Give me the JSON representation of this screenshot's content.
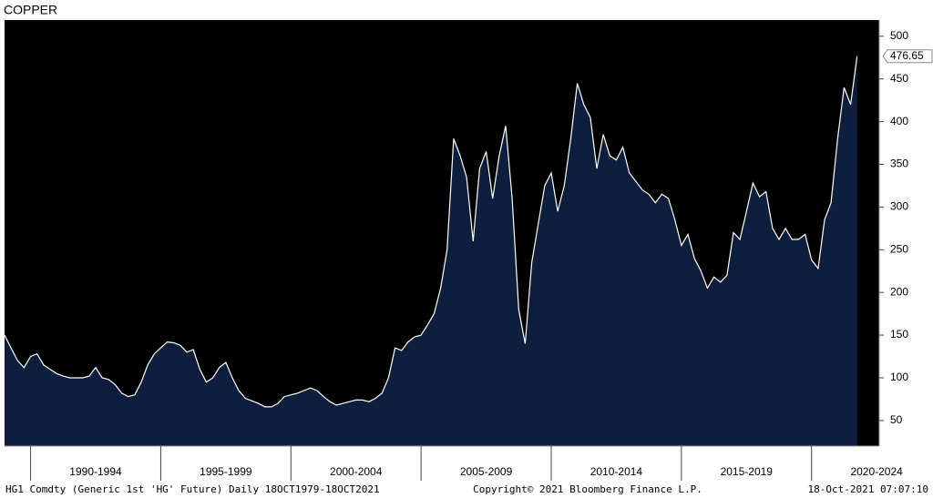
{
  "chart_data": {
    "type": "area",
    "title": "COPPER",
    "x": [
      1989,
      1989.25,
      1989.5,
      1989.75,
      1990,
      1990.25,
      1990.5,
      1990.75,
      1991,
      1991.25,
      1991.5,
      1991.75,
      1992,
      1992.25,
      1992.5,
      1992.75,
      1993,
      1993.25,
      1993.5,
      1993.75,
      1994,
      1994.25,
      1994.5,
      1994.75,
      1995,
      1995.25,
      1995.5,
      1995.75,
      1996,
      1996.25,
      1996.5,
      1996.75,
      1997,
      1997.25,
      1997.5,
      1997.75,
      1998,
      1998.25,
      1998.5,
      1998.75,
      1999,
      1999.25,
      1999.5,
      1999.75,
      2000,
      2000.25,
      2000.5,
      2000.75,
      2001,
      2001.25,
      2001.5,
      2001.75,
      2002,
      2002.25,
      2002.5,
      2002.75,
      2003,
      2003.25,
      2003.5,
      2003.75,
      2004,
      2004.25,
      2004.5,
      2004.75,
      2005,
      2005.25,
      2005.5,
      2005.75,
      2006,
      2006.25,
      2006.5,
      2006.75,
      2007,
      2007.25,
      2007.5,
      2007.75,
      2008,
      2008.25,
      2008.5,
      2008.75,
      2009,
      2009.25,
      2009.5,
      2009.75,
      2010,
      2010.25,
      2010.5,
      2010.75,
      2011,
      2011.25,
      2011.5,
      2011.75,
      2012,
      2012.25,
      2012.5,
      2012.75,
      2013,
      2013.25,
      2013.5,
      2013.75,
      2014,
      2014.25,
      2014.5,
      2014.75,
      2015,
      2015.25,
      2015.5,
      2015.75,
      2016,
      2016.25,
      2016.5,
      2016.75,
      2017,
      2017.25,
      2017.5,
      2017.75,
      2018,
      2018.25,
      2018.5,
      2018.75,
      2019,
      2019.25,
      2019.5,
      2019.75,
      2020,
      2020.25,
      2020.5,
      2020.75,
      2021,
      2021.25,
      2021.5,
      2021.75
    ],
    "series": [
      {
        "name": "HG1 Comdty",
        "color": "#0e1f3d",
        "line_color": "#ffffff",
        "values": [
          150,
          135,
          120,
          112,
          125,
          128,
          115,
          110,
          105,
          102,
          100,
          100,
          100,
          102,
          112,
          100,
          98,
          92,
          82,
          78,
          80,
          95,
          115,
          128,
          135,
          142,
          141,
          138,
          130,
          133,
          110,
          95,
          100,
          112,
          118,
          100,
          85,
          76,
          73,
          70,
          66,
          66,
          70,
          78,
          80,
          82,
          85,
          88,
          85,
          78,
          72,
          68,
          70,
          72,
          74,
          74,
          72,
          76,
          82,
          100,
          135,
          132,
          142,
          148,
          150,
          162,
          175,
          205,
          250,
          380,
          360,
          335,
          260,
          345,
          365,
          310,
          360,
          395,
          310,
          180,
          140,
          235,
          280,
          325,
          340,
          295,
          325,
          380,
          445,
          420,
          405,
          345,
          385,
          360,
          355,
          370,
          340,
          330,
          320,
          315,
          305,
          315,
          310,
          285,
          255,
          268,
          240,
          225,
          205,
          218,
          212,
          220,
          270,
          262,
          295,
          328,
          312,
          318,
          275,
          262,
          275,
          262,
          262,
          268,
          238,
          228,
          285,
          305,
          380,
          440,
          420,
          476.65
        ]
      }
    ],
    "xlim": [
      1989,
      2022.6
    ],
    "xticks": [
      {
        "value": 1992.5,
        "label": "1990-1994"
      },
      {
        "value": 1997.5,
        "label": "1995-1999"
      },
      {
        "value": 2002.5,
        "label": "2000-2004"
      },
      {
        "value": 2007.5,
        "label": "2005-2009"
      },
      {
        "value": 2012.5,
        "label": "2010-2014"
      },
      {
        "value": 2017.5,
        "label": "2015-2019"
      },
      {
        "value": 2022.5,
        "label": "2020-2024"
      }
    ],
    "xseparators": [
      1990,
      1995,
      2000,
      2005,
      2010,
      2015,
      2020
    ],
    "ylim": [
      20,
      519
    ],
    "yticks": [
      50,
      100,
      150,
      200,
      250,
      300,
      350,
      400,
      450,
      500
    ],
    "background": "#000000",
    "footer": {
      "left": "HG1 Comdty (Generic 1st 'HG' Future)  Daily 18OCT1979-18OCT2021",
      "center": "Copyright© 2021 Bloomberg Finance L.P.",
      "right": "18-Oct-2021 07:07:10"
    }
  }
}
